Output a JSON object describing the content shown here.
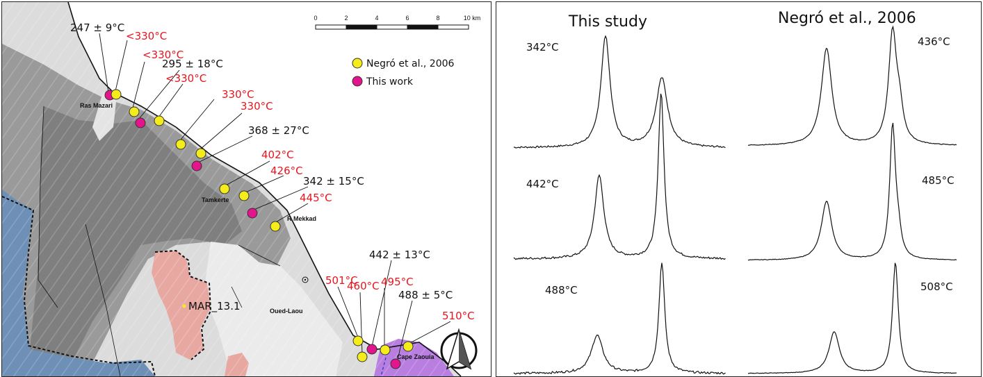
{
  "map": {
    "places": {
      "ras_mazari": "Ras Mazari",
      "tamkerte": "Tamkerte",
      "r_mekkad": "R Mekkad",
      "oued_laou": "Oued-Laou",
      "cape_zaouia": "Cape Zaouia",
      "mar_13_1": "MAR_13.1"
    },
    "legend": [
      {
        "label": "Negró et al., 2006",
        "color": "#f5ec1c"
      },
      {
        "label": "This work",
        "color": "#e4148c"
      }
    ],
    "scale": {
      "ticks": [
        "0",
        "2",
        "4",
        "6",
        "8",
        "10 km"
      ]
    },
    "temperature_labels": [
      {
        "text": "247 ± 9°C",
        "color": "#111111"
      },
      {
        "text": "<330°C",
        "color": "#e8141c"
      },
      {
        "text": "<330°C",
        "color": "#e8141c"
      },
      {
        "text": "295 ± 18°C",
        "color": "#111111"
      },
      {
        "text": "<330°C",
        "color": "#e8141c"
      },
      {
        "text": "330°C",
        "color": "#e8141c"
      },
      {
        "text": "330°C",
        "color": "#e8141c"
      },
      {
        "text": "368 ± 27°C",
        "color": "#111111"
      },
      {
        "text": "402°C",
        "color": "#e8141c"
      },
      {
        "text": "426°C",
        "color": "#e8141c"
      },
      {
        "text": "342 ± 15°C",
        "color": "#111111"
      },
      {
        "text": "445°C",
        "color": "#e8141c"
      },
      {
        "text": "442 ± 13°C",
        "color": "#111111"
      },
      {
        "text": "501°C",
        "color": "#e8141c"
      },
      {
        "text": "460°C",
        "color": "#e8141c"
      },
      {
        "text": "495°C",
        "color": "#e8141c"
      },
      {
        "text": "488 ± 5°C",
        "color": "#111111"
      },
      {
        "text": "510°C",
        "color": "#e8141c"
      }
    ]
  },
  "spectra": {
    "headers": {
      "this_study": "This study",
      "negro": "Negró et al., 2006"
    },
    "this_study_temps": [
      "342°C",
      "442°C",
      "488°C"
    ],
    "negro_temps": [
      "436°C",
      "485°C",
      "508°C"
    ]
  }
}
